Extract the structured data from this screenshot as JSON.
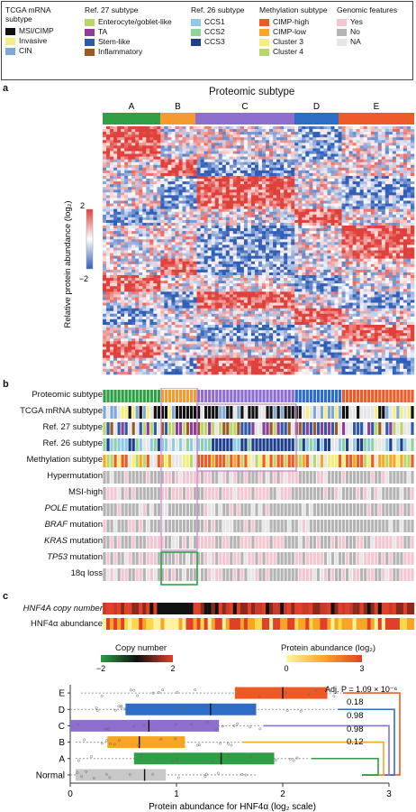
{
  "legend": {
    "columns": [
      {
        "title": "TCGA mRNA subtype",
        "items": [
          {
            "label": "MSI/CIMP",
            "color": "#111111"
          },
          {
            "label": "Invasive",
            "color": "#f4ee7a"
          },
          {
            "label": "CIN",
            "color": "#7ea8d8"
          }
        ]
      },
      {
        "title": "Ref. 27 subtype",
        "items": [
          {
            "label": "Enterocyte/goblet-like",
            "color": "#b7d66b"
          },
          {
            "label": "TA",
            "color": "#8e3e98"
          },
          {
            "label": "Stem-like",
            "color": "#2f5aa8"
          },
          {
            "label": "Inflammatory",
            "color": "#9b5a24"
          }
        ]
      },
      {
        "title": "Ref. 26 subtype",
        "items": [
          {
            "label": "CCS1",
            "color": "#8ecae6"
          },
          {
            "label": "CCS2",
            "color": "#8fd39a"
          },
          {
            "label": "CCS3",
            "color": "#1d3f8c"
          }
        ]
      },
      {
        "title": "Methylation subtype",
        "items": [
          {
            "label": "CIMP-high",
            "color": "#ee5a24"
          },
          {
            "label": "CIMP-low",
            "color": "#f6a623"
          },
          {
            "label": "Cluster 3",
            "color": "#f4ee7a"
          },
          {
            "label": "Cluster 4",
            "color": "#b7d66b"
          }
        ]
      },
      {
        "title": "Genomic features",
        "items": [
          {
            "label": "Yes",
            "color": "#f6c6d0"
          },
          {
            "label": "No",
            "color": "#b4b4b4"
          },
          {
            "label": "NA",
            "color": "#e6e6e6"
          }
        ]
      }
    ]
  },
  "panel_a": {
    "letter": "a",
    "title": "Proteomic subtype",
    "groups": [
      {
        "label": "A",
        "color": "#2f9e44"
      },
      {
        "label": "B",
        "color": "#f59a31"
      },
      {
        "label": "C",
        "color": "#8e6fcf"
      },
      {
        "label": "D",
        "color": "#2d6dc5"
      },
      {
        "label": "E",
        "color": "#ee5a2a"
      }
    ],
    "colorbar_max": "2",
    "colorbar_min": "−2",
    "ylabel": "Relative protein abundance (log₂)"
  },
  "panel_b": {
    "letter": "b",
    "rows": [
      "Proteomic subtype",
      "TCGA mRNA subtype",
      "Ref. 27 subtype",
      "Ref. 26 subtype",
      "Methylation subtype",
      "Hypermutation",
      "MSI-high",
      "POLE mutation",
      "BRAF mutation",
      "KRAS mutation",
      "TP53 mutation",
      "18q loss"
    ]
  },
  "panel_c": {
    "letter": "c",
    "rows": [
      "HNF4A copy number",
      "HNF4α abundance"
    ],
    "copy_number_legend": {
      "title": "Copy number",
      "min": "−2",
      "mid": "0",
      "max": "2"
    },
    "protein_legend": {
      "title": "Protein abundance (log₂)",
      "min": "0",
      "max": "3"
    }
  },
  "chart_data": {
    "type": "boxplot",
    "categories": [
      "E",
      "D",
      "C",
      "B",
      "A",
      "Normal"
    ],
    "colors": [
      "#ee5a24",
      "#2d6dc5",
      "#8e6fcf",
      "#f6a623",
      "#2f9e44",
      "#c8c8c8"
    ],
    "q1": [
      1.55,
      0.52,
      0.0,
      0.35,
      0.6,
      0.05
    ],
    "median": [
      2.0,
      1.32,
      0.74,
      0.65,
      1.42,
      0.7
    ],
    "q3": [
      2.42,
      1.75,
      1.4,
      1.08,
      1.92,
      0.9
    ],
    "whisker_low": [
      0.1,
      0.0,
      0.0,
      0.05,
      0.05,
      0.0
    ],
    "whisker_high": [
      2.55,
      2.5,
      1.8,
      1.6,
      2.25,
      1.75
    ],
    "xlabel": "Protein abundance for HNF4α (log₂ scale)",
    "xlim": [
      0,
      3
    ],
    "xticks": [
      "0",
      "1",
      "2",
      "3"
    ],
    "annotations": [
      "Adj. P = 1.09 × 10⁻⁶",
      "0.18",
      "0.98",
      "0.98",
      "0.12"
    ]
  }
}
